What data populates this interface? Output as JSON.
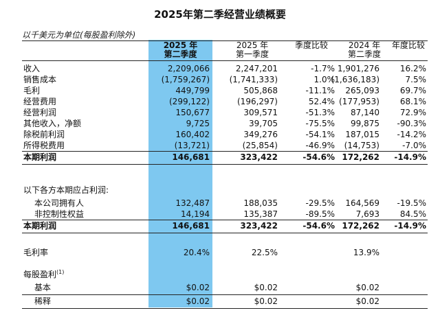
{
  "title": "2025年第二季经营业绩概要",
  "unit_note": "以千美元为单位(每股盈利除外)",
  "colors": {
    "highlight": "#7ec8f0"
  },
  "headers": [
    {
      "line1": "2025 年",
      "line2": "第二季度"
    },
    {
      "line1": "2025 年",
      "line2": "第一季度"
    },
    {
      "line1": "季度比较",
      "line2": ""
    },
    {
      "line1": "2024 年",
      "line2": "第二季度"
    },
    {
      "line1": "年度比较",
      "line2": ""
    }
  ],
  "rows": [
    {
      "label": "收入",
      "v": [
        "2,209,066",
        "2,247,201",
        "-1.7%",
        "1,901,276",
        "16.2%"
      ]
    },
    {
      "label": "销售成本",
      "v": [
        "(1,759,267)",
        "(1,741,333)",
        "1.0%",
        "(1,636,183)",
        "7.5%"
      ]
    },
    {
      "label": "毛利",
      "v": [
        "449,799",
        "505,868",
        "-11.1%",
        "265,093",
        "69.7%"
      ]
    },
    {
      "label": "经营费用",
      "v": [
        "(299,122)",
        "(196,297)",
        "52.4%",
        "(177,953)",
        "68.1%"
      ]
    },
    {
      "label": "经营利润",
      "v": [
        "150,677",
        "309,571",
        "-51.3%",
        "87,140",
        "72.9%"
      ]
    },
    {
      "label": "其他收入，净额",
      "v": [
        "9,725",
        "39,705",
        "-75.5%",
        "99,875",
        "-90.3%"
      ]
    },
    {
      "label": "除税前利润",
      "v": [
        "160,402",
        "349,276",
        "-54.1%",
        "187,015",
        "-14.2%"
      ]
    },
    {
      "label": "所得税费用",
      "v": [
        "(13,721)",
        "(25,854)",
        "-46.9%",
        "(14,753)",
        "-7.0%"
      ]
    },
    {
      "label": "本期利润",
      "v": [
        "146,681",
        "323,422",
        "-54.6%",
        "172,262",
        "-14.9%"
      ]
    }
  ],
  "attrib_heading": "以下各方本期应占利润:",
  "attrib_rows": [
    {
      "label": "本公司拥有人",
      "v": [
        "132,487",
        "188,035",
        "-29.5%",
        "164,569",
        "-19.5%"
      ]
    },
    {
      "label": "非控制性权益",
      "v": [
        "14,194",
        "135,387",
        "-89.5%",
        "7,693",
        "84.5%"
      ]
    },
    {
      "label": "本期利润",
      "v": [
        "146,681",
        "323,422",
        "-54.6%",
        "172,262",
        "-14.9%"
      ]
    }
  ],
  "gross_margin": {
    "label": "毛利率",
    "v": [
      "20.4%",
      "22.5%",
      "",
      "13.9%",
      ""
    ]
  },
  "eps_heading": "每股盈利",
  "eps_footnote": "(1)",
  "eps_rows": [
    {
      "label": "基本",
      "v": [
        "$0.02",
        "$0.02",
        "",
        "$0.02",
        ""
      ]
    },
    {
      "label": "稀释",
      "v": [
        "$0.02",
        "$0.02",
        "",
        "$0.02",
        ""
      ]
    }
  ]
}
